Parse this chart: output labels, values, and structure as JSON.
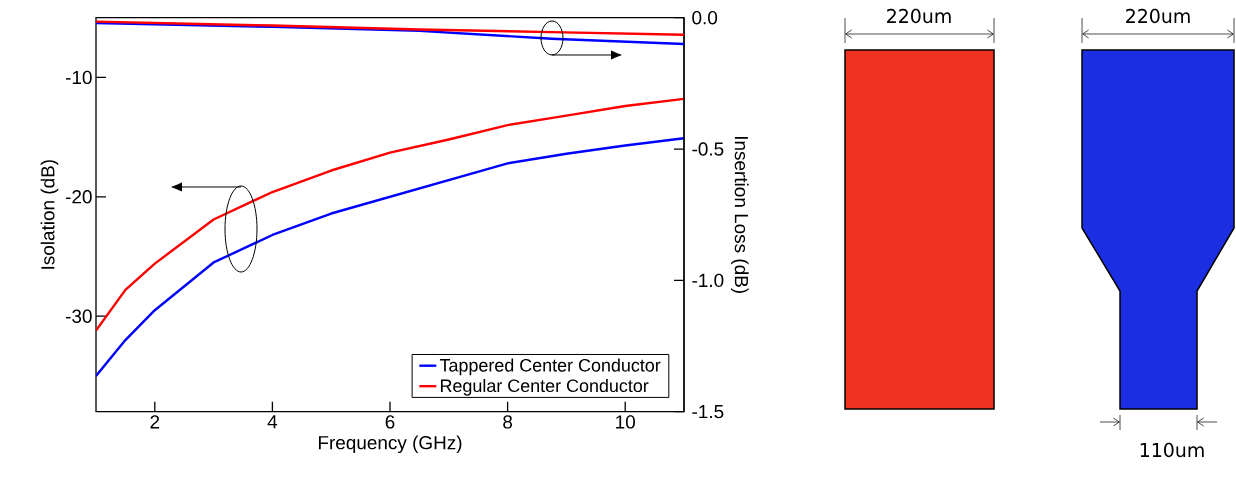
{
  "chart_data": {
    "type": "line",
    "xlabel": "Frequency (GHz)",
    "ylabel": "Isolation (dB)",
    "y2label": "Insertion Loss (dB)",
    "x": [
      1,
      1.5,
      2,
      3,
      4,
      5,
      6,
      7,
      8,
      9,
      10,
      11
    ],
    "series": [
      {
        "name": "Tappered Center Conductor",
        "color": "#0000ff",
        "values": [
          -35.0,
          -32.0,
          -29.5,
          -25.5,
          -23.2,
          -21.4,
          -20.0,
          -18.6,
          -17.2,
          -16.4,
          -15.7,
          -15.1
        ]
      },
      {
        "name": "Regular Center Conductor",
        "color": "#ff0000",
        "values": [
          -31.2,
          -27.8,
          -25.6,
          -21.9,
          -19.6,
          -17.8,
          -16.3,
          -15.2,
          -14.0,
          -13.2,
          -12.4,
          -11.8
        ]
      },
      {
        "color": "#0000ff",
        "axis": "y2",
        "x": [
          1,
          4,
          6.5,
          8.75,
          11
        ],
        "values": [
          -0.02,
          -0.035,
          -0.05,
          -0.08,
          -0.1
        ]
      },
      {
        "color": "#ff0000",
        "axis": "y2",
        "x": [
          1,
          4,
          6.5,
          8.75,
          11
        ],
        "values": [
          -0.015,
          -0.03,
          -0.045,
          -0.055,
          -0.065
        ]
      }
    ],
    "xlim": [
      1,
      11
    ],
    "xticks": [
      2,
      4,
      6,
      8,
      10
    ],
    "ylim": [
      -38,
      -5
    ],
    "yticks": [
      -10,
      -20,
      -30
    ],
    "y2lim": [
      -1.5,
      0
    ],
    "y2ticks": [
      {
        "value": 0,
        "label": "0.0"
      },
      {
        "value": -0.5,
        "label": "-0.5"
      },
      {
        "value": -1.0,
        "label": "-1.0"
      },
      {
        "value": -1.5,
        "label": "-1.5"
      }
    ],
    "legend": "bottom right",
    "annotations": [
      "220um",
      "220um",
      "110um"
    ]
  }
}
